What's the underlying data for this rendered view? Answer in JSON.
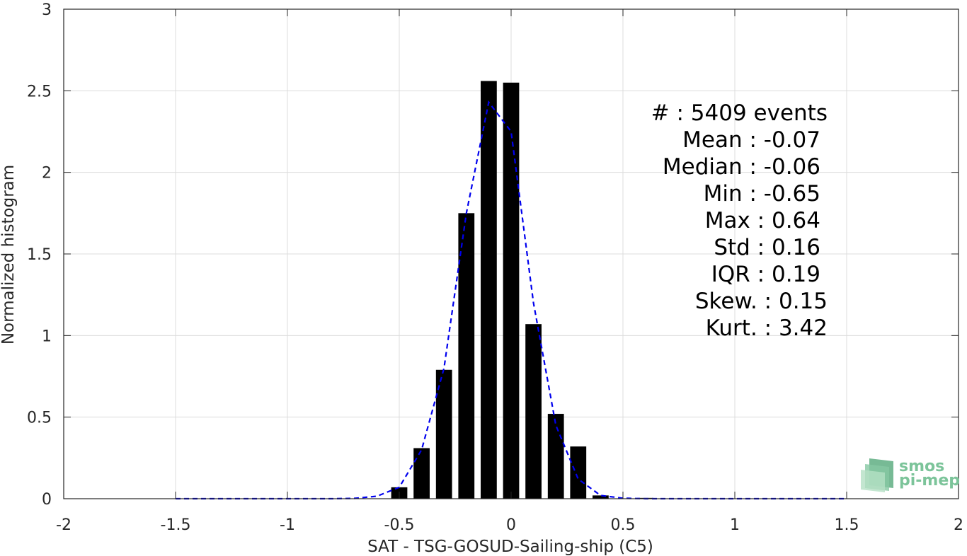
{
  "chart_data": {
    "type": "bar",
    "xlabel": "SAT - TSG-GOSUD-Sailing-ship (C5)",
    "ylabel": "Normalized histogram",
    "xlim": [
      -2,
      2
    ],
    "ylim": [
      0,
      3
    ],
    "x_ticks": [
      "-2",
      "-1.5",
      "-1",
      "-0.5",
      "0",
      "0.5",
      "1",
      "1.5",
      "2"
    ],
    "y_ticks": [
      "0",
      "0.5",
      "1",
      "1.5",
      "2",
      "2.5",
      "3"
    ],
    "grid": true,
    "bin_width": 0.1,
    "bars": {
      "x": [
        -0.5,
        -0.4,
        -0.3,
        -0.2,
        -0.1,
        0.0,
        0.1,
        0.2,
        0.3,
        0.4,
        0.6
      ],
      "values": [
        0.07,
        0.31,
        0.79,
        1.75,
        2.56,
        2.55,
        1.07,
        0.52,
        0.32,
        0.02,
        0.005
      ],
      "color": "#000000"
    },
    "fit": {
      "style": "dashed",
      "color": "#0000ee",
      "x": [
        -1.5,
        -1.4,
        -1.3,
        -1.2,
        -1.1,
        -1.0,
        -0.9,
        -0.8,
        -0.7,
        -0.6,
        -0.5,
        -0.4,
        -0.3,
        -0.2,
        -0.1,
        0.0,
        0.1,
        0.2,
        0.3,
        0.4,
        0.5,
        0.6,
        0.7,
        0.8,
        0.9,
        1.0,
        1.1,
        1.2,
        1.3,
        1.4,
        1.5
      ],
      "y": [
        0,
        0,
        0,
        0,
        0,
        0,
        0,
        0,
        0.002,
        0.015,
        0.07,
        0.3,
        0.8,
        1.75,
        2.43,
        2.25,
        1.2,
        0.45,
        0.12,
        0.02,
        0.003,
        0,
        0,
        0,
        0,
        0,
        0,
        0,
        0,
        0,
        0
      ]
    },
    "annotations": [
      "#  : 5409 events",
      "Mean : -0.07",
      "Median : -0.06",
      "Min : -0.65",
      "Max : 0.64",
      "Std : 0.16",
      "IQR : 0.19",
      "Skew. : 0.15",
      "Kurt. : 3.42"
    ]
  },
  "logo": {
    "line1": "smos",
    "line2": "pi-mep",
    "color": "#7cc49a"
  }
}
